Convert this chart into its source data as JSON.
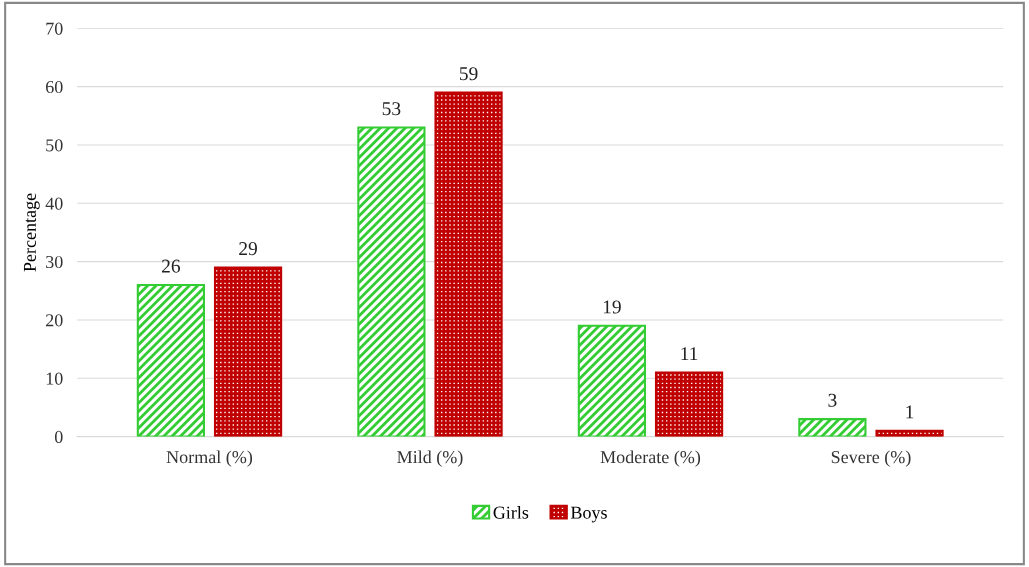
{
  "chart_data": {
    "type": "bar",
    "ylabel": "Percentage",
    "categories": [
      "Normal (%)",
      "Mild (%)",
      "Moderate (%)",
      "Severe (%)"
    ],
    "series": [
      {
        "name": "Girls",
        "color": "#33cc33",
        "values": [
          26,
          53,
          19,
          3
        ]
      },
      {
        "name": "Boys",
        "color": "#c00000",
        "values": [
          29,
          59,
          11,
          1
        ]
      }
    ],
    "ylim": [
      0,
      70
    ],
    "yticks": [
      0,
      10,
      20,
      30,
      40,
      50,
      60,
      70
    ],
    "grid": "y",
    "legend": "bottom",
    "data_labels": true
  }
}
